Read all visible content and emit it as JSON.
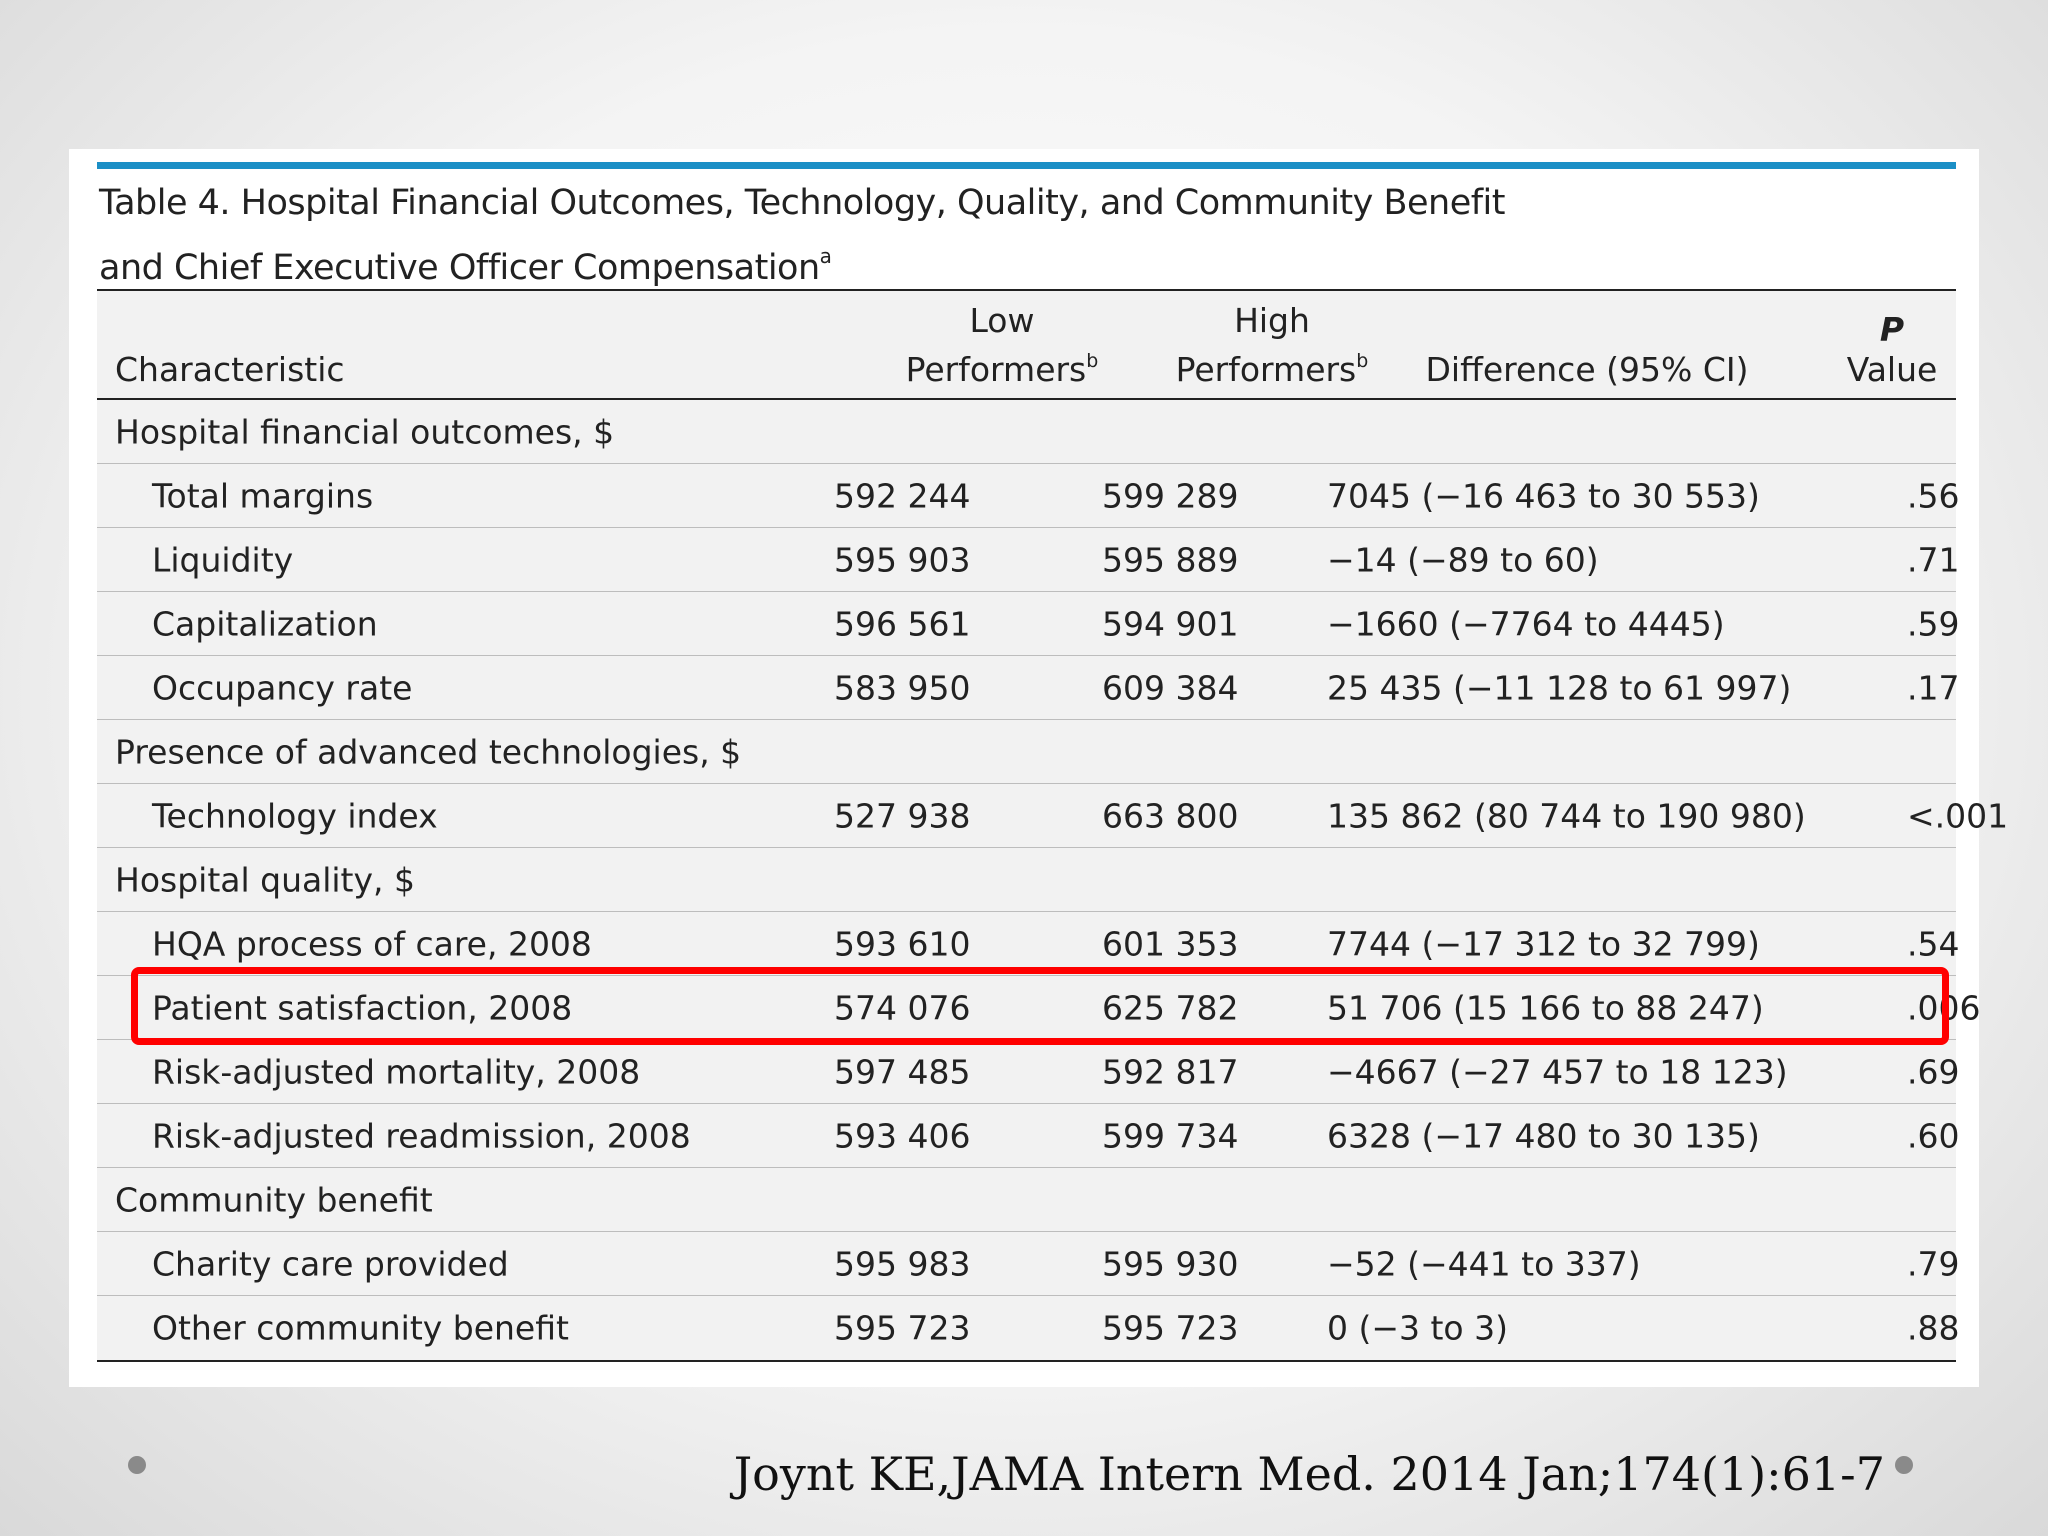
{
  "title_line1": "Table 4. Hospital Financial Outcomes, Technology, Quality, and Community Benefit",
  "title_line2": "and Chief Executive Officer Compensation",
  "title_superscript": "a",
  "columns": {
    "characteristic": "Characteristic",
    "low_line1": "Low",
    "low_line2": "Performers",
    "low_sup": "b",
    "high_line1": "High",
    "high_line2": "Performers",
    "high_sup": "b",
    "difference": "Difference (95% CI)",
    "p_line1": "P",
    "p_line2": "Value"
  },
  "sections": [
    {
      "label": "Hospital financial outcomes, $",
      "rows": [
        {
          "characteristic": "Total margins",
          "low": "592 244",
          "high": "599 289",
          "difference": "7045 (−16 463 to 30 553)",
          "p": ".56"
        },
        {
          "characteristic": "Liquidity",
          "low": "595 903",
          "high": "595 889",
          "difference": "−14 (−89 to 60)",
          "p": ".71"
        },
        {
          "characteristic": "Capitalization",
          "low": "596 561",
          "high": "594 901",
          "difference": "−1660 (−7764 to 4445)",
          "p": ".59"
        },
        {
          "characteristic": "Occupancy rate",
          "low": "583 950",
          "high": "609 384",
          "difference": "25 435 (−11 128 to 61 997)",
          "p": ".17"
        }
      ]
    },
    {
      "label": "Presence of advanced technologies, $",
      "rows": [
        {
          "characteristic": "Technology index",
          "low": "527 938",
          "high": "663 800",
          "difference": "135 862 (80 744 to 190 980)",
          "p": "<.001"
        }
      ]
    },
    {
      "label": "Hospital quality, $",
      "rows": [
        {
          "characteristic": "HQA process of care, 2008",
          "low": "593 610",
          "high": "601 353",
          "difference": "7744 (−17 312 to 32 799)",
          "p": ".54"
        },
        {
          "characteristic": "Patient satisfaction, 2008",
          "low": "574 076",
          "high": "625 782",
          "difference": "51 706 (15 166 to 88 247)",
          "p": ".006"
        },
        {
          "characteristic": "Risk-adjusted mortality, 2008",
          "low": "597 485",
          "high": "592 817",
          "difference": "−4667 (−27 457 to 18 123)",
          "p": ".69"
        },
        {
          "characteristic": "Risk-adjusted readmission, 2008",
          "low": "593 406",
          "high": "599 734",
          "difference": "6328 (−17 480 to 30 135)",
          "p": ".60"
        }
      ]
    },
    {
      "label": "Community benefit",
      "rows": [
        {
          "characteristic": "Charity care provided",
          "low": "595 983",
          "high": "595 930",
          "difference": "−52 (−441 to 337)",
          "p": ".79"
        },
        {
          "characteristic": "Other community benefit",
          "low": "595 723",
          "high": "595 723",
          "difference": "0 (−3 to 3)",
          "p": ".88"
        }
      ]
    }
  ],
  "citation": "Joynt KE,JAMA Intern Med. 2014 Jan;174(1):61-7",
  "colors": {
    "accent_bar": "#1b8fc6",
    "highlight": "#ff0000"
  }
}
